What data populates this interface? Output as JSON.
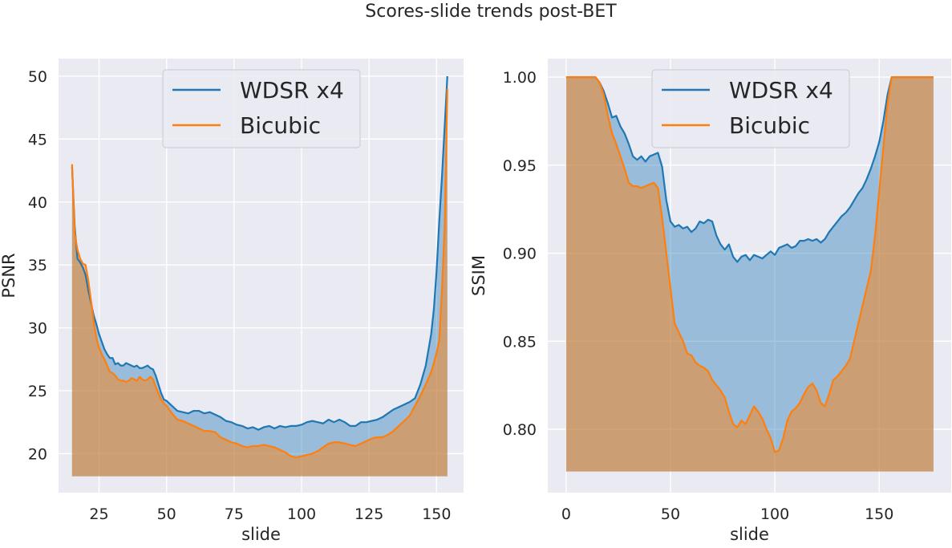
{
  "figure": {
    "title": "Scores-slide trends post-BET"
  },
  "colors": {
    "wdsr": "#1f77b4",
    "bicubic": "#ff7f0e",
    "panel_bg": "#eaeaf2",
    "grid": "#ffffff"
  },
  "chart_data": [
    {
      "type": "area",
      "xlabel": "slide",
      "ylabel": "PSNR",
      "xlim": [
        10,
        160
      ],
      "ylim": [
        16.9,
        51.4
      ],
      "xticks": [
        25,
        50,
        75,
        100,
        125,
        150
      ],
      "yticks": [
        20,
        25,
        30,
        35,
        40,
        45,
        50
      ],
      "grid": true,
      "legend": {
        "position": "top-center",
        "entries": [
          "WDSR x4",
          "Bicubic"
        ]
      },
      "fill_baseline": 18.2,
      "series": [
        {
          "name": "WDSR x4",
          "x": [
            15,
            16,
            17,
            18,
            19,
            20,
            21,
            22,
            23,
            24,
            25,
            26,
            27,
            28,
            29,
            30,
            31,
            32,
            33,
            34,
            35,
            36,
            37,
            38,
            39,
            40,
            41,
            42,
            43,
            44,
            45,
            46,
            47,
            48,
            49,
            50,
            52,
            54,
            56,
            58,
            60,
            62,
            64,
            66,
            68,
            70,
            72,
            74,
            76,
            78,
            80,
            82,
            84,
            86,
            88,
            90,
            92,
            94,
            96,
            98,
            100,
            102,
            104,
            106,
            108,
            110,
            112,
            114,
            116,
            118,
            120,
            122,
            124,
            126,
            128,
            130,
            132,
            134,
            136,
            138,
            140,
            142,
            144,
            146,
            148,
            149,
            150,
            151,
            152,
            153,
            154
          ],
          "values": [
            42.8,
            38,
            35.5,
            35.2,
            34.8,
            34.2,
            33,
            32,
            31,
            30.3,
            29.5,
            28.9,
            28.3,
            27.9,
            27.6,
            27.6,
            27.1,
            27.2,
            27.0,
            27.0,
            27.2,
            27.1,
            27.0,
            26.9,
            27.0,
            26.8,
            26.8,
            26.9,
            27.0,
            26.8,
            26.7,
            26.2,
            25.5,
            24.8,
            24.3,
            24.2,
            23.8,
            23.4,
            23.3,
            23.2,
            23.4,
            23.4,
            23.2,
            23.3,
            23.1,
            22.9,
            22.6,
            22.5,
            22.3,
            22.2,
            22.0,
            22.1,
            21.9,
            22.1,
            22.2,
            22.0,
            22.2,
            22.1,
            22.2,
            22.2,
            22.3,
            22.5,
            22.6,
            22.5,
            22.4,
            22.7,
            22.5,
            22.7,
            22.5,
            22.2,
            22.2,
            22.5,
            22.5,
            22.6,
            22.7,
            22.9,
            23.2,
            23.5,
            23.7,
            23.9,
            24.1,
            24.4,
            25.5,
            27.0,
            29.5,
            31.5,
            34.5,
            38.5,
            42,
            46,
            50
          ]
        },
        {
          "name": "Bicubic",
          "x": [
            15,
            16,
            17,
            18,
            19,
            20,
            21,
            22,
            23,
            24,
            25,
            26,
            27,
            28,
            29,
            30,
            31,
            32,
            33,
            34,
            35,
            36,
            37,
            38,
            39,
            40,
            41,
            42,
            43,
            44,
            45,
            46,
            47,
            48,
            49,
            50,
            52,
            54,
            56,
            58,
            60,
            62,
            64,
            66,
            68,
            70,
            72,
            74,
            76,
            78,
            80,
            82,
            84,
            86,
            88,
            90,
            92,
            94,
            96,
            98,
            100,
            102,
            104,
            106,
            108,
            110,
            112,
            114,
            116,
            118,
            120,
            122,
            124,
            126,
            128,
            130,
            132,
            134,
            136,
            138,
            140,
            142,
            144,
            146,
            148,
            149,
            150,
            151,
            152,
            153,
            154
          ],
          "values": [
            43,
            37.5,
            36.2,
            35.5,
            35.1,
            35.0,
            33.8,
            32.2,
            30.5,
            29.2,
            28.4,
            27.9,
            27.5,
            27.0,
            26.5,
            26.4,
            26.2,
            25.9,
            25.8,
            25.8,
            25.7,
            25.8,
            26.0,
            25.9,
            25.8,
            26.1,
            25.9,
            25.8,
            25.9,
            26.1,
            25.9,
            25.3,
            24.8,
            24.3,
            24.0,
            23.8,
            23.2,
            22.7,
            22.6,
            22.4,
            22.2,
            22.0,
            21.8,
            21.8,
            21.7,
            21.3,
            21.1,
            20.9,
            20.8,
            20.6,
            20.5,
            20.6,
            20.6,
            20.7,
            20.6,
            20.5,
            20.3,
            20.1,
            19.8,
            19.7,
            19.8,
            19.9,
            20.0,
            20.2,
            20.5,
            20.8,
            20.9,
            20.9,
            20.8,
            20.7,
            20.6,
            20.8,
            21.0,
            21.2,
            21.3,
            21.3,
            21.5,
            21.8,
            22.2,
            22.6,
            23.0,
            23.8,
            24.6,
            25.5,
            26.5,
            27.2,
            28.0,
            29.0,
            33,
            38,
            49
          ]
        }
      ]
    },
    {
      "type": "area",
      "xlabel": "slide",
      "ylabel": "SSIM",
      "xlim": [
        -8.8,
        184.5
      ],
      "ylim": [
        0.764,
        1.0105
      ],
      "xticks": [
        0,
        50,
        100,
        150
      ],
      "yticks": [
        0.8,
        0.85,
        0.9,
        0.95,
        1.0
      ],
      "grid": true,
      "legend": {
        "position": "top-center",
        "entries": [
          "WDSR x4",
          "Bicubic"
        ]
      },
      "fill_baseline": 0.776,
      "series": [
        {
          "name": "WDSR x4",
          "x": [
            0,
            5,
            10,
            14,
            16,
            18,
            20,
            22,
            24,
            26,
            28,
            30,
            32,
            34,
            36,
            38,
            40,
            42,
            44,
            46,
            48,
            50,
            52,
            54,
            56,
            58,
            60,
            62,
            64,
            66,
            68,
            70,
            72,
            74,
            76,
            78,
            80,
            82,
            84,
            86,
            88,
            90,
            92,
            94,
            96,
            98,
            100,
            102,
            104,
            106,
            108,
            110,
            112,
            114,
            116,
            118,
            120,
            122,
            124,
            126,
            128,
            130,
            132,
            134,
            136,
            138,
            140,
            142,
            144,
            146,
            148,
            150,
            152,
            154,
            156,
            158,
            160,
            165,
            170,
            176
          ],
          "values": [
            1.0,
            1.0,
            1.0,
            1.0,
            0.997,
            0.992,
            0.985,
            0.977,
            0.978,
            0.972,
            0.968,
            0.962,
            0.955,
            0.953,
            0.955,
            0.952,
            0.955,
            0.956,
            0.957,
            0.949,
            0.93,
            0.918,
            0.915,
            0.916,
            0.914,
            0.915,
            0.912,
            0.914,
            0.918,
            0.917,
            0.919,
            0.918,
            0.91,
            0.905,
            0.902,
            0.905,
            0.898,
            0.895,
            0.898,
            0.899,
            0.896,
            0.899,
            0.898,
            0.897,
            0.899,
            0.901,
            0.899,
            0.903,
            0.904,
            0.905,
            0.903,
            0.904,
            0.907,
            0.907,
            0.908,
            0.907,
            0.908,
            0.906,
            0.908,
            0.912,
            0.915,
            0.918,
            0.921,
            0.923,
            0.926,
            0.93,
            0.934,
            0.937,
            0.942,
            0.948,
            0.955,
            0.963,
            0.975,
            0.99,
            1.0,
            1.0,
            1.0,
            1.0,
            1.0,
            1.0
          ]
        },
        {
          "name": "Bicubic",
          "x": [
            0,
            5,
            10,
            14,
            16,
            18,
            20,
            22,
            24,
            26,
            28,
            30,
            32,
            34,
            36,
            38,
            40,
            42,
            44,
            46,
            48,
            50,
            52,
            54,
            56,
            58,
            60,
            62,
            64,
            66,
            68,
            70,
            72,
            74,
            76,
            78,
            80,
            82,
            84,
            86,
            88,
            90,
            92,
            94,
            96,
            98,
            100,
            102,
            104,
            106,
            108,
            110,
            112,
            114,
            116,
            118,
            120,
            122,
            124,
            126,
            128,
            130,
            132,
            134,
            136,
            138,
            140,
            142,
            144,
            146,
            148,
            150,
            152,
            154,
            156,
            158,
            160,
            165,
            170,
            176
          ],
          "values": [
            1.0,
            1.0,
            1.0,
            1.0,
            0.997,
            0.99,
            0.978,
            0.968,
            0.962,
            0.955,
            0.948,
            0.94,
            0.938,
            0.938,
            0.937,
            0.938,
            0.939,
            0.94,
            0.937,
            0.92,
            0.9,
            0.88,
            0.86,
            0.855,
            0.85,
            0.843,
            0.842,
            0.838,
            0.836,
            0.835,
            0.833,
            0.828,
            0.825,
            0.822,
            0.818,
            0.81,
            0.803,
            0.801,
            0.805,
            0.803,
            0.808,
            0.813,
            0.81,
            0.806,
            0.8,
            0.795,
            0.787,
            0.788,
            0.795,
            0.805,
            0.81,
            0.812,
            0.815,
            0.82,
            0.824,
            0.826,
            0.822,
            0.815,
            0.813,
            0.82,
            0.828,
            0.83,
            0.833,
            0.836,
            0.84,
            0.85,
            0.86,
            0.87,
            0.88,
            0.89,
            0.91,
            0.935,
            0.96,
            0.985,
            1.0,
            1.0,
            1.0,
            1.0,
            1.0,
            1.0
          ]
        }
      ]
    }
  ]
}
